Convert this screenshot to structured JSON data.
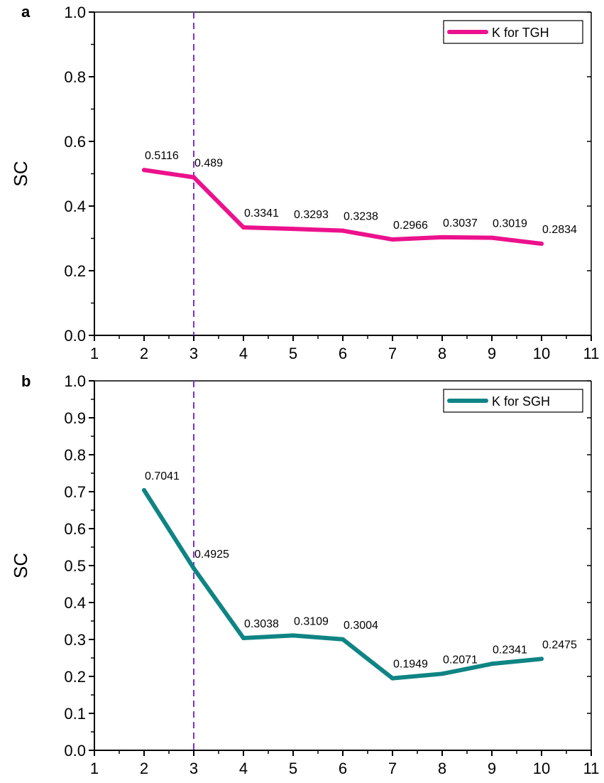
{
  "chart_data": [
    {
      "type": "line",
      "panel_label": "a",
      "ylabel": "SC",
      "xlabel": "",
      "xlim": [
        1,
        11
      ],
      "ylim": [
        0.0,
        1.0
      ],
      "x_ticks": [
        "1",
        "2",
        "3",
        "4",
        "5",
        "6",
        "7",
        "8",
        "9",
        "10",
        "11"
      ],
      "y_ticks": [
        "0.0",
        "0.2",
        "0.4",
        "0.6",
        "0.8",
        "1.0"
      ],
      "y_tick_values": [
        0.0,
        0.2,
        0.4,
        0.6,
        0.8,
        1.0
      ],
      "vline_x": 3,
      "vline_color": "#7b2fd6",
      "legend_position": "top-right",
      "series": [
        {
          "name": "K for TGH",
          "color": "#ec118c",
          "x": [
            2,
            3,
            4,
            5,
            6,
            7,
            8,
            9,
            10
          ],
          "values": [
            0.5116,
            0.489,
            0.3341,
            0.3293,
            0.3238,
            0.2966,
            0.3037,
            0.3019,
            0.2834
          ],
          "labels": [
            "0.5116",
            "0.489",
            "0.3341",
            "0.3293",
            "0.3238",
            "0.2966",
            "0.3037",
            "0.3019",
            "0.2834"
          ]
        }
      ]
    },
    {
      "type": "line",
      "panel_label": "b",
      "ylabel": "SC",
      "xlabel": "",
      "xlim": [
        1,
        11
      ],
      "ylim": [
        0.0,
        1.0
      ],
      "x_ticks": [
        "1",
        "2",
        "3",
        "4",
        "5",
        "6",
        "7",
        "8",
        "9",
        "10",
        "11"
      ],
      "y_ticks": [
        "0.0",
        "0.1",
        "0.2",
        "0.3",
        "0.4",
        "0.5",
        "0.6",
        "0.7",
        "0.8",
        "0.9",
        "1.0"
      ],
      "y_tick_values": [
        0.0,
        0.1,
        0.2,
        0.3,
        0.4,
        0.5,
        0.6,
        0.7,
        0.8,
        0.9,
        1.0
      ],
      "vline_x": 3,
      "vline_color": "#7b2fd6",
      "legend_position": "top-right",
      "series": [
        {
          "name": "K for SGH",
          "color": "#0f8484",
          "x": [
            2,
            3,
            4,
            5,
            6,
            7,
            8,
            9,
            10
          ],
          "values": [
            0.7041,
            0.4925,
            0.3038,
            0.3109,
            0.3004,
            0.1949,
            0.2071,
            0.2341,
            0.2475
          ],
          "labels": [
            "0.7041",
            "0.4925",
            "0.3038",
            "0.3109",
            "0.3004",
            "0.1949",
            "0.2071",
            "0.2341",
            "0.2475"
          ]
        }
      ]
    }
  ]
}
